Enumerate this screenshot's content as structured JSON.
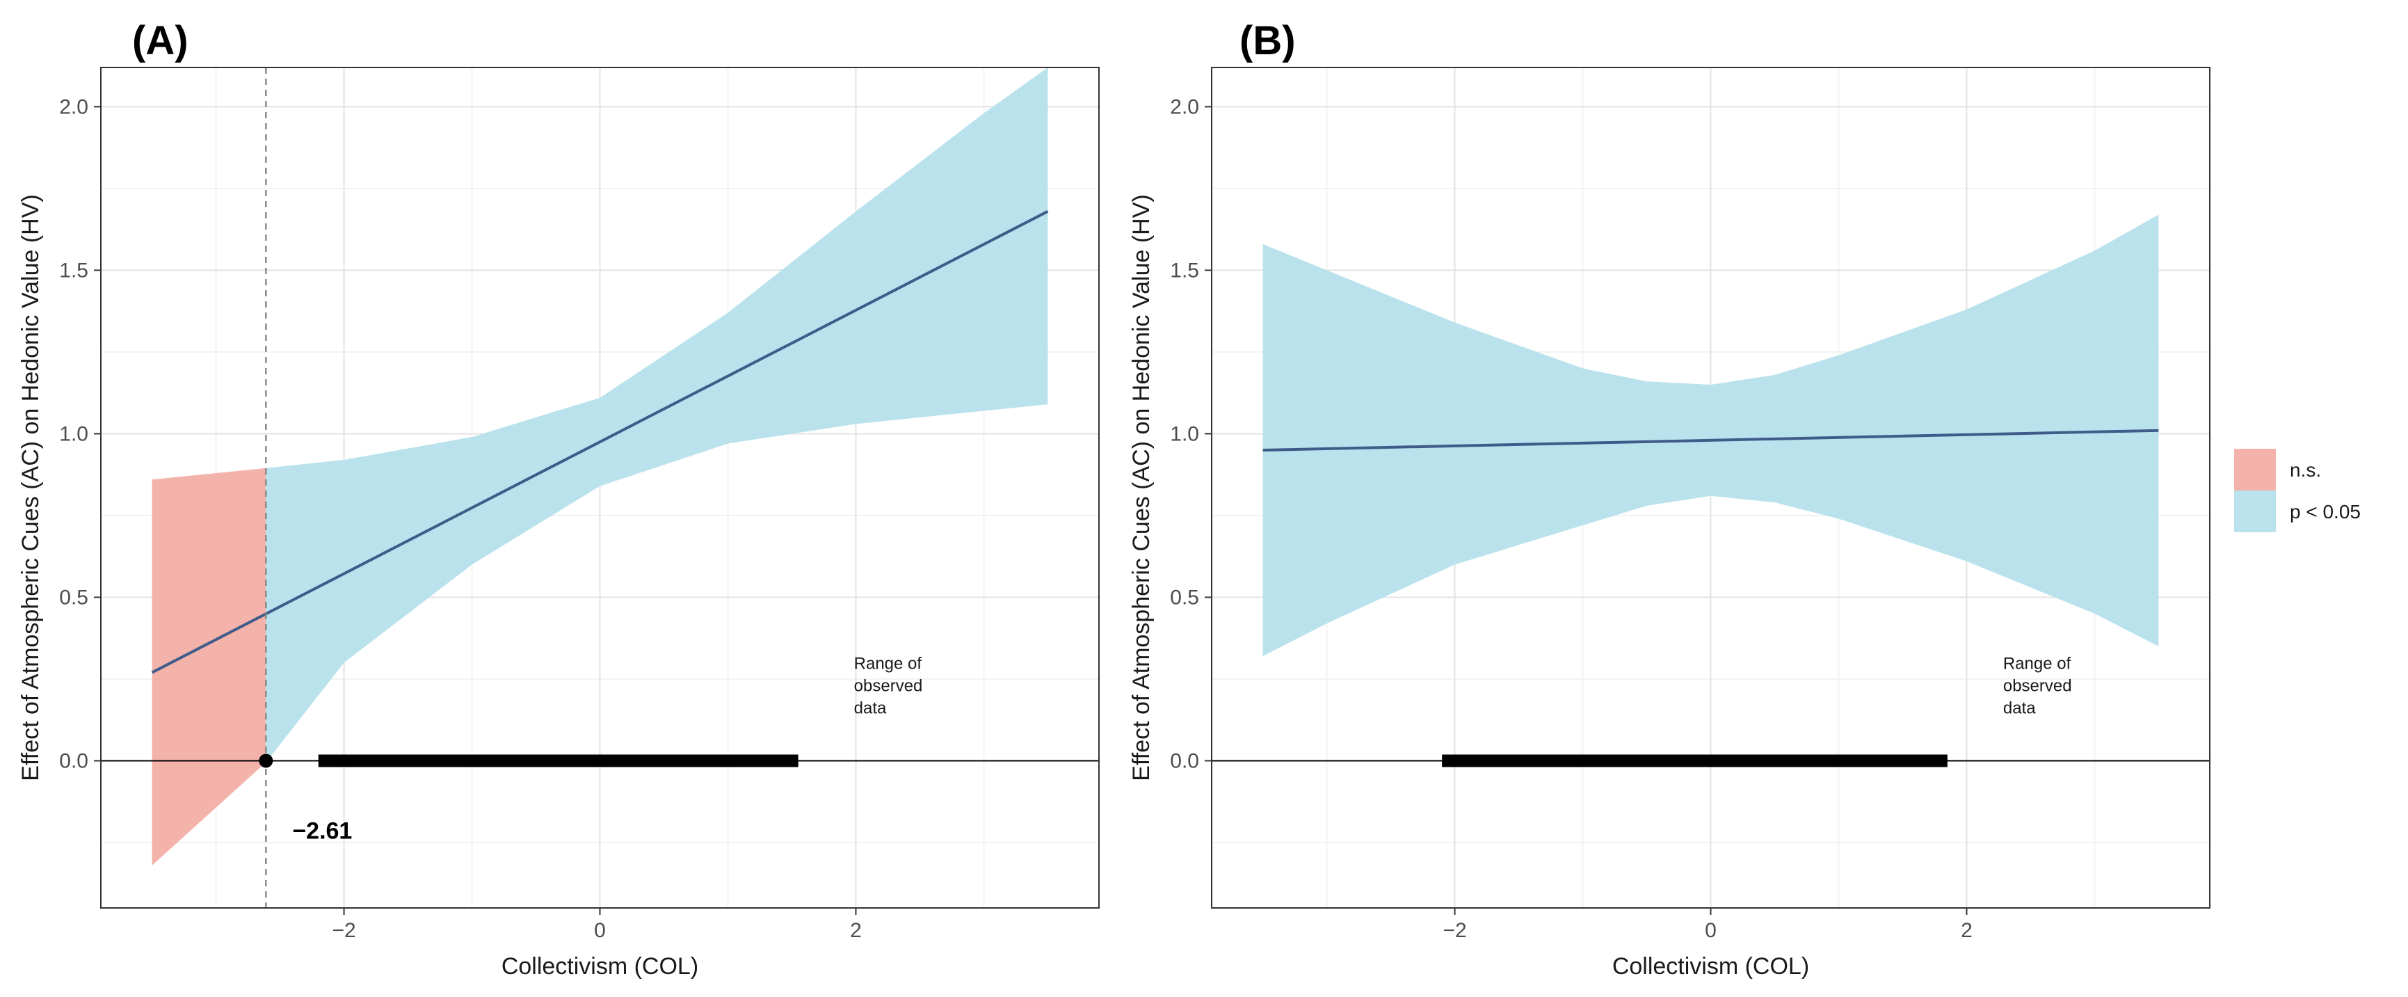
{
  "chart_data": [
    {
      "type": "line",
      "panel_label": "(A)",
      "xlabel": "Collectivism (COL)",
      "ylabel": "Effect of Atmospheric Cues (AC) on Hedonic Value (HV)",
      "xlim": [
        -3.9,
        3.9
      ],
      "ylim": [
        -0.45,
        2.12
      ],
      "x_ticks": [
        -2,
        0,
        2
      ],
      "x_tick_labels": [
        "−2",
        "0",
        "2"
      ],
      "y_ticks": [
        0.0,
        0.5,
        1.0,
        1.5,
        2.0
      ],
      "y_tick_labels": [
        "0.0",
        "0.5",
        "1.0",
        "1.5",
        "2.0"
      ],
      "grid": true,
      "regions": [
        {
          "name": "n.s.",
          "color": "#F4B3AA",
          "x": [
            -3.5,
            -2.61
          ],
          "lower": [
            -0.32,
            -0.005
          ],
          "upper": [
            0.86,
            0.895
          ]
        },
        {
          "name": "p < 0.05",
          "color": "#B9E2EC",
          "x": [
            -2.61,
            -2,
            -1,
            0,
            1,
            2,
            3,
            3.5
          ],
          "lower": [
            -0.005,
            0.3,
            0.6,
            0.84,
            0.97,
            1.03,
            1.07,
            1.09
          ],
          "upper": [
            0.895,
            0.92,
            0.99,
            1.11,
            1.37,
            1.68,
            1.98,
            2.12
          ]
        }
      ],
      "line": {
        "color": "#3F5B8A",
        "x": [
          -3.5,
          3.5
        ],
        "y": [
          0.27,
          1.68
        ]
      },
      "johnson_neyman": {
        "x": -2.61,
        "label": "−2.61"
      },
      "observed_range": {
        "x": [
          -2.2,
          1.55
        ],
        "label_lines": [
          "Range of",
          "observed",
          "data"
        ]
      }
    },
    {
      "type": "line",
      "panel_label": "(B)",
      "xlabel": "Collectivism (COL)",
      "ylabel": "Effect of Atmospheric Cues (AC) on Hedonic Value (HV)",
      "xlim": [
        -3.9,
        3.9
      ],
      "ylim": [
        -0.45,
        2.12
      ],
      "x_ticks": [
        -2,
        0,
        2
      ],
      "x_tick_labels": [
        "−2",
        "0",
        "2"
      ],
      "y_ticks": [
        0.0,
        0.5,
        1.0,
        1.5,
        2.0
      ],
      "y_tick_labels": [
        "0.0",
        "0.5",
        "1.0",
        "1.5",
        "2.0"
      ],
      "grid": true,
      "regions": [
        {
          "name": "p < 0.05",
          "color": "#B9E2EC",
          "x": [
            -3.5,
            -3,
            -2,
            -1,
            -0.5,
            0,
            0.5,
            1,
            2,
            3,
            3.5
          ],
          "lower": [
            0.32,
            0.42,
            0.6,
            0.72,
            0.78,
            0.81,
            0.79,
            0.74,
            0.61,
            0.45,
            0.35
          ],
          "upper": [
            1.58,
            1.5,
            1.34,
            1.2,
            1.16,
            1.15,
            1.18,
            1.24,
            1.38,
            1.56,
            1.67
          ]
        }
      ],
      "line": {
        "color": "#3F5B8A",
        "x": [
          -3.5,
          3.5
        ],
        "y": [
          0.95,
          1.01
        ]
      },
      "observed_range": {
        "x": [
          -2.1,
          1.85
        ],
        "label_lines": [
          "Range of",
          "observed",
          "data"
        ]
      }
    }
  ],
  "legend": {
    "placement": "right",
    "items": [
      {
        "label": "n.s.",
        "color": "#F4B3AA"
      },
      {
        "label": "p < 0.05",
        "color": "#B9E2EC"
      }
    ]
  }
}
